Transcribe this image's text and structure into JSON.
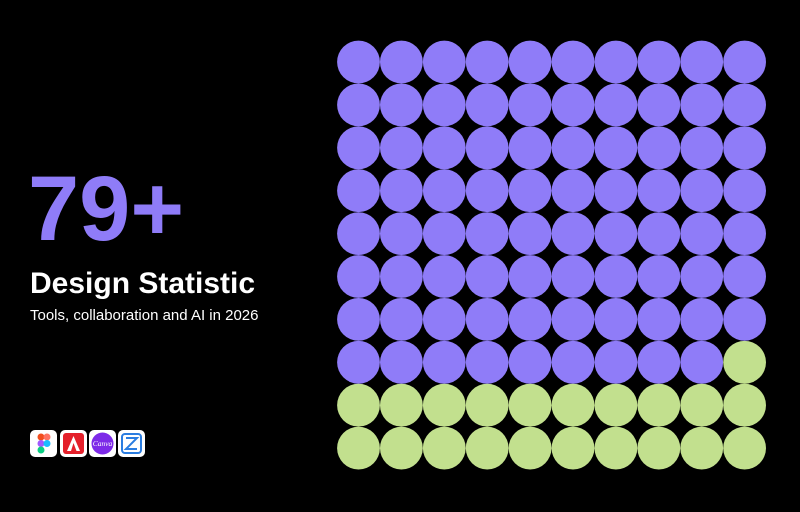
{
  "chart_data": {
    "type": "waffle",
    "value_labels": [
      "79+",
      null
    ],
    "title": "Design Statistic",
    "subtitle": "Tools, collaboration and AI in 2026",
    "values": [
      79,
      21
    ],
    "colors": [
      "#8f7cf8",
      "#c2e08e"
    ],
    "columns": 10
  },
  "tools": {
    "canva_label": "Canva"
  }
}
